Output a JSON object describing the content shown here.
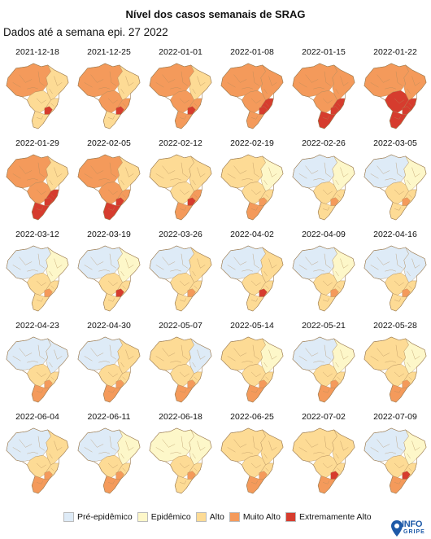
{
  "title": "Nível dos casos semanais de SRAG",
  "subtitle": "Dados até a semana epi. 27 2022",
  "colors": {
    "pre": "#deebf7",
    "epi": "#fdf7c9",
    "alto": "#fddb95",
    "muito": "#f49a5b",
    "extremo": "#d63c2e"
  },
  "legend": [
    {
      "label": "Pré-epidêmico",
      "key": "pre"
    },
    {
      "label": "Epidêmico",
      "key": "epi"
    },
    {
      "label": "Alto",
      "key": "alto"
    },
    {
      "label": "Muito Alto",
      "key": "muito"
    },
    {
      "label": "Extremamente Alto",
      "key": "extremo"
    }
  ],
  "maps": [
    {
      "date": "2021-12-18",
      "N": "muito",
      "NE": "alto",
      "CW": "alto",
      "SE": "alto",
      "S": "alto",
      "hot": "extremo"
    },
    {
      "date": "2021-12-25",
      "N": "muito",
      "NE": "alto",
      "CW": "muito",
      "SE": "muito",
      "S": "alto",
      "hot": "extremo"
    },
    {
      "date": "2022-01-01",
      "N": "muito",
      "NE": "alto",
      "CW": "muito",
      "SE": "muito",
      "S": "muito",
      "hot": "extremo"
    },
    {
      "date": "2022-01-08",
      "N": "muito",
      "NE": "muito",
      "CW": "muito",
      "SE": "extremo",
      "S": "muito",
      "hot": "extremo"
    },
    {
      "date": "2022-01-15",
      "N": "muito",
      "NE": "muito",
      "CW": "muito",
      "SE": "extremo",
      "S": "extremo",
      "hot": "extremo"
    },
    {
      "date": "2022-01-22",
      "N": "muito",
      "NE": "muito",
      "CW": "extremo",
      "SE": "extremo",
      "S": "extremo",
      "hot": "extremo"
    },
    {
      "date": "2022-01-29",
      "N": "muito",
      "NE": "alto",
      "CW": "muito",
      "SE": "extremo",
      "S": "extremo",
      "hot": "extremo"
    },
    {
      "date": "2022-02-05",
      "N": "muito",
      "NE": "alto",
      "CW": "muito",
      "SE": "muito",
      "S": "extremo",
      "hot": "extremo"
    },
    {
      "date": "2022-02-12",
      "N": "alto",
      "NE": "alto",
      "CW": "alto",
      "SE": "muito",
      "S": "muito",
      "hot": "extremo"
    },
    {
      "date": "2022-02-19",
      "N": "alto",
      "NE": "epi",
      "CW": "alto",
      "SE": "alto",
      "S": "muito",
      "hot": "muito"
    },
    {
      "date": "2022-02-26",
      "N": "pre",
      "NE": "epi",
      "CW": "alto",
      "SE": "alto",
      "S": "alto",
      "hot": "muito"
    },
    {
      "date": "2022-03-05",
      "N": "pre",
      "NE": "epi",
      "CW": "alto",
      "SE": "alto",
      "S": "alto",
      "hot": "muito"
    },
    {
      "date": "2022-03-12",
      "N": "pre",
      "NE": "epi",
      "CW": "alto",
      "SE": "alto",
      "S": "alto",
      "hot": "muito"
    },
    {
      "date": "2022-03-19",
      "N": "pre",
      "NE": "epi",
      "CW": "alto",
      "SE": "alto",
      "S": "alto",
      "hot": "extremo"
    },
    {
      "date": "2022-03-26",
      "N": "pre",
      "NE": "alto",
      "CW": "alto",
      "SE": "alto",
      "S": "alto",
      "hot": "muito"
    },
    {
      "date": "2022-04-02",
      "N": "pre",
      "NE": "alto",
      "CW": "alto",
      "SE": "alto",
      "S": "alto",
      "hot": "extremo"
    },
    {
      "date": "2022-04-09",
      "N": "pre",
      "NE": "epi",
      "CW": "alto",
      "SE": "alto",
      "S": "alto",
      "hot": "muito"
    },
    {
      "date": "2022-04-16",
      "N": "pre",
      "NE": "pre",
      "CW": "alto",
      "SE": "alto",
      "S": "alto",
      "hot": "muito"
    },
    {
      "date": "2022-04-23",
      "N": "pre",
      "NE": "pre",
      "CW": "alto",
      "SE": "alto",
      "S": "muito",
      "hot": "muito"
    },
    {
      "date": "2022-04-30",
      "N": "pre",
      "NE": "alto",
      "CW": "alto",
      "SE": "alto",
      "S": "muito",
      "hot": "muito"
    },
    {
      "date": "2022-05-07",
      "N": "alto",
      "NE": "pre",
      "CW": "alto",
      "SE": "alto",
      "S": "muito",
      "hot": "muito"
    },
    {
      "date": "2022-05-14",
      "N": "alto",
      "NE": "epi",
      "CW": "alto",
      "SE": "alto",
      "S": "muito",
      "hot": "muito"
    },
    {
      "date": "2022-05-21",
      "N": "pre",
      "NE": "epi",
      "CW": "alto",
      "SE": "alto",
      "S": "muito",
      "hot": "muito"
    },
    {
      "date": "2022-05-28",
      "N": "alto",
      "NE": "epi",
      "CW": "alto",
      "SE": "alto",
      "S": "muito",
      "hot": "muito"
    },
    {
      "date": "2022-06-04",
      "N": "pre",
      "NE": "alto",
      "CW": "alto",
      "SE": "alto",
      "S": "muito",
      "hot": "muito"
    },
    {
      "date": "2022-06-11",
      "N": "pre",
      "NE": "epi",
      "CW": "alto",
      "SE": "alto",
      "S": "muito",
      "hot": "muito"
    },
    {
      "date": "2022-06-18",
      "N": "epi",
      "NE": "epi",
      "CW": "alto",
      "SE": "alto",
      "S": "alto",
      "hot": "muito"
    },
    {
      "date": "2022-06-25",
      "N": "alto",
      "NE": "alto",
      "CW": "alto",
      "SE": "alto",
      "S": "muito",
      "hot": "muito"
    },
    {
      "date": "2022-07-02",
      "N": "alto",
      "NE": "alto",
      "CW": "alto",
      "SE": "alto",
      "S": "muito",
      "hot": "extremo"
    },
    {
      "date": "2022-07-09",
      "N": "pre",
      "NE": "epi",
      "CW": "alto",
      "SE": "alto",
      "S": "muito",
      "hot": "extremo"
    }
  ],
  "logo": {
    "top": "INFO",
    "bottom": "GRIPE"
  }
}
